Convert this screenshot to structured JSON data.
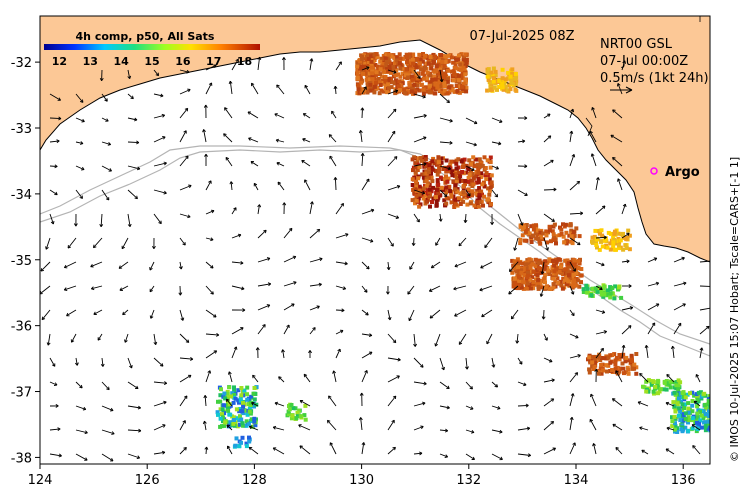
{
  "map": {
    "date_label": "07-Jul-2025 08Z",
    "product": {
      "line1": "NRT00 GSL",
      "line2": "07-Jul 00:00Z",
      "line3": "0.5m/s (1kt 24h)"
    },
    "colorbar": {
      "title": "4h comp, p50, All Sats",
      "min": 11.5,
      "max": 18.5,
      "ticks": [
        "12",
        "13",
        "14",
        "15",
        "16",
        "17",
        "18"
      ]
    },
    "legend": {
      "argo_label": "Argo",
      "argo_color": "#ff00ff"
    },
    "credit": "© IMOS 10-Jul-2025 15:07 Hobart; Tscale=CARS+[-1 1]",
    "x_ticks": [
      "124",
      "126",
      "128",
      "130",
      "132",
      "134",
      "136"
    ],
    "y_ticks": [
      "-32",
      "-33",
      "-34",
      "-35",
      "-36",
      "-37",
      "-38"
    ],
    "lon_range": [
      124,
      136.5
    ],
    "lat_range": [
      -38.1,
      -31.3
    ],
    "colors": {
      "land": "#fcc896",
      "ocean": "#ffffff",
      "contour": "#b4b4b4"
    }
  }
}
